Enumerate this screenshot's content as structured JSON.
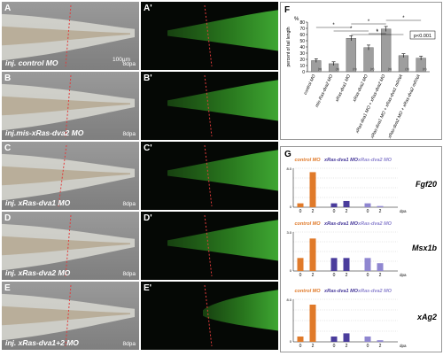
{
  "panels": [
    {
      "id": "A",
      "id2": "A'",
      "caption": "inj. control MO",
      "dpa": "8dpa",
      "scale": "100µm"
    },
    {
      "id": "B",
      "id2": "B'",
      "caption": "inj.mis-xRas-dva2 MO",
      "dpa": "8dpa"
    },
    {
      "id": "C",
      "id2": "C'",
      "caption": "inj. xRas-dva1 MO",
      "dpa": "8dpa"
    },
    {
      "id": "D",
      "id2": "D'",
      "caption": "inj. xRas-dva2 MO",
      "dpa": "8dpa"
    },
    {
      "id": "E",
      "id2": "E'",
      "caption": "inj. xRas-dva1+2 MO",
      "dpa": "8dpa"
    }
  ],
  "panelF": {
    "label": "F",
    "ytitle": "percent of tail length",
    "yunit": "%",
    "legend": "p<0.001",
    "chart_data": {
      "type": "bar",
      "categories": [
        "control MO",
        "mis-Ras-dva2 MO",
        "xRas-dva1 MO",
        "xRas-dva2 MO",
        "xRas-dva1 MO + xRas-dva2 MO",
        "xRas-dva1 MO + xRas-dva1 mRNA",
        "xRas-dva2 MO + xRas-dva2 mRNA"
      ],
      "values": [
        18,
        13,
        54,
        39,
        69,
        26,
        22
      ],
      "errors": [
        3,
        3,
        4,
        4,
        4,
        3,
        3
      ],
      "ylim": [
        0,
        80
      ],
      "yticks": [
        0,
        10,
        20,
        30,
        40,
        50,
        60,
        70,
        80
      ],
      "n": [
        "(n)",
        "(n)",
        "(n)",
        "(n)",
        "(n)",
        "(n)",
        "(n)"
      ],
      "significance_marks": [
        "*",
        "*",
        "*",
        "*",
        "*",
        "*"
      ]
    }
  },
  "panelG": {
    "label": "G",
    "group_labels": [
      "control MO",
      "xRas-dva1 MO",
      "xRas-dva2 MO"
    ],
    "xaxis_unit": "dpa",
    "genes": [
      {
        "name": "Fgf20",
        "ylim": [
          0,
          10
        ],
        "yticks": [
          "0",
          "",
          "8.0"
        ],
        "chart_data": {
          "type": "bar",
          "x": [
            "0",
            "2",
            "0",
            "2",
            "0",
            "2"
          ],
          "values": [
            1,
            9,
            1,
            1.6,
            1,
            0.3
          ]
        }
      },
      {
        "name": "Msx1b",
        "ylim": [
          0,
          3
        ],
        "yticks": [
          "0",
          "",
          "3.0"
        ],
        "chart_data": {
          "type": "bar",
          "x": [
            "0",
            "2",
            "0",
            "2",
            "0",
            "2"
          ],
          "values": [
            1,
            2.5,
            1,
            1,
            1,
            0.6
          ]
        }
      },
      {
        "name": "xAg2",
        "ylim": [
          0,
          8
        ],
        "yticks": [
          "0",
          "",
          "8.0"
        ],
        "chart_data": {
          "type": "bar",
          "x": [
            "0",
            "2",
            "0",
            "2",
            "0",
            "2"
          ],
          "values": [
            1,
            7,
            1,
            1.6,
            1,
            0.3
          ]
        }
      }
    ],
    "colors": {
      "control": "#e07a2a",
      "dva1": "#4a3c9c",
      "dva2": "#8f86d0"
    }
  }
}
